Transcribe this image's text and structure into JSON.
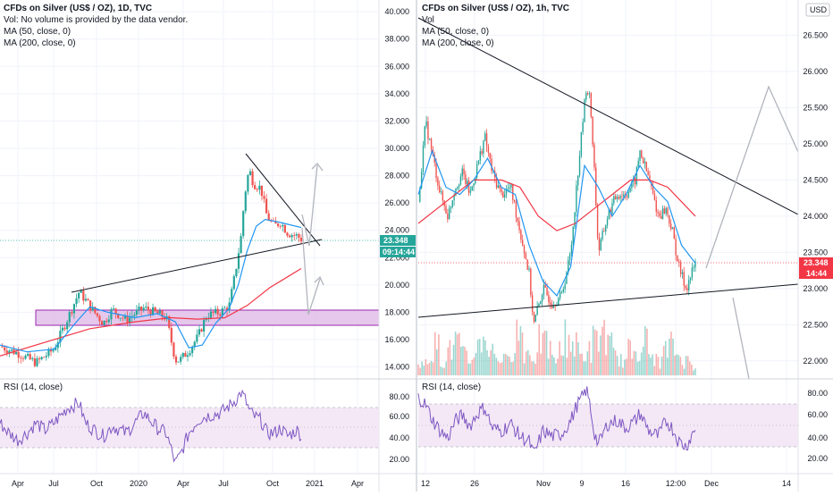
{
  "left_panel": {
    "header": {
      "title": "CFDs on Silver (US$ / OZ), 1D, TVC",
      "vol": "Vol: No volume is provided by the data vendor.",
      "ma50": "MA (50, close, 0)",
      "ma200": "MA (200, close, 0)"
    },
    "rsi_label": "RSI (14, close)",
    "last_price_tag": "23.348",
    "countdown_tag": "09:14:44",
    "price_axis_labels": [
      "40.000",
      "38.000",
      "36.000",
      "34.000",
      "32.000",
      "30.000",
      "28.000",
      "26.000",
      "24.000",
      "22.000",
      "20.000",
      "18.000",
      "16.000",
      "14.000"
    ],
    "rsi_axis_labels": [
      "80.00",
      "60.00",
      "40.00",
      "20.00"
    ],
    "time_axis_labels": [
      "Apr",
      "Jul",
      "Oct",
      "2020",
      "Apr",
      "Jul",
      "Oct",
      "2021",
      "Apr"
    ]
  },
  "right_panel": {
    "header": {
      "title": "CFDs on Silver (US$ / OZ), 1h, TVC",
      "vol": "Vol",
      "ma50": "MA (50, close, 0)",
      "ma200": "MA (200, close, 0)"
    },
    "currency_badge": "USD",
    "rsi_label": "RSI (14, close)",
    "last_price_tag": "23.348",
    "countdown_tag": "14:44",
    "price_axis_labels": [
      "26.500",
      "26.000",
      "25.500",
      "25.000",
      "24.500",
      "24.000",
      "23.500",
      "23.000",
      "22.500",
      "22.000"
    ],
    "rsi_axis_labels": [
      "80.00",
      "60.00",
      "40.00",
      "20.00"
    ],
    "time_axis_labels": [
      "12",
      "26",
      "Nov",
      "9",
      "16",
      "12:00",
      "Dec",
      "14"
    ]
  },
  "colors": {
    "up": "#26a69a",
    "down": "#ef5350",
    "ma50": "#2196f3",
    "ma200": "#f23645",
    "rsi": "#7e57c2",
    "rsi_band": "#f3e5f5",
    "zone_fill": "#e1bee7",
    "zone_border": "#9c27b0",
    "trendline": "#131722",
    "projection": "#b2b5be",
    "last_price_green": "#26a69a",
    "last_price_red": "#f23645"
  },
  "chart_data": [
    {
      "type": "candlestick",
      "title": "CFDs on Silver (US$ / OZ), 1D, TVC",
      "series_names": [
        "MA (50, close, 0)",
        "MA (200, close, 0)",
        "RSI (14, close)"
      ],
      "ylim": [
        13.5,
        40.5
      ],
      "close_path": [
        [
          0,
          15.5
        ],
        [
          20,
          15.0
        ],
        [
          40,
          14.3
        ],
        [
          60,
          15.3
        ],
        [
          75,
          17.5
        ],
        [
          88,
          19.5
        ],
        [
          95,
          18.9
        ],
        [
          105,
          18.0
        ],
        [
          115,
          17.2
        ],
        [
          125,
          18.2
        ],
        [
          140,
          17.4
        ],
        [
          150,
          17.9
        ],
        [
          160,
          18.3
        ],
        [
          175,
          17.9
        ],
        [
          185,
          17.6
        ],
        [
          195,
          14.5
        ],
        [
          200,
          14.5
        ],
        [
          210,
          15.2
        ],
        [
          220,
          16.2
        ],
        [
          230,
          17.8
        ],
        [
          245,
          18.0
        ],
        [
          255,
          18.5
        ],
        [
          262,
          21.0
        ],
        [
          268,
          23.5
        ],
        [
          272,
          26.5
        ],
        [
          277,
          28.5
        ],
        [
          282,
          27.4
        ],
        [
          290,
          27.1
        ],
        [
          297,
          25.0
        ],
        [
          305,
          24.3
        ],
        [
          312,
          24.6
        ],
        [
          320,
          23.8
        ],
        [
          330,
          23.6
        ],
        [
          335,
          23.35
        ]
      ],
      "ma50_path": [
        [
          0,
          15.6
        ],
        [
          30,
          15.1
        ],
        [
          60,
          15.3
        ],
        [
          85,
          17.3
        ],
        [
          100,
          18.4
        ],
        [
          120,
          18.0
        ],
        [
          150,
          17.6
        ],
        [
          175,
          17.9
        ],
        [
          195,
          17.3
        ],
        [
          210,
          15.4
        ],
        [
          225,
          15.6
        ],
        [
          240,
          17.2
        ],
        [
          255,
          18.3
        ],
        [
          265,
          20.0
        ],
        [
          275,
          22.5
        ],
        [
          285,
          24.3
        ],
        [
          295,
          24.8
        ],
        [
          310,
          24.6
        ],
        [
          335,
          24.2
        ]
      ],
      "ma200_path": [
        [
          0,
          14.8
        ],
        [
          100,
          16.8
        ],
        [
          150,
          17.3
        ],
        [
          190,
          17.6
        ],
        [
          220,
          17.5
        ],
        [
          250,
          17.6
        ],
        [
          275,
          18.5
        ],
        [
          300,
          19.8
        ],
        [
          320,
          20.6
        ],
        [
          335,
          21.2
        ]
      ],
      "rsi_path": [
        [
          0,
          55
        ],
        [
          10,
          45
        ],
        [
          20,
          38
        ],
        [
          30,
          45
        ],
        [
          40,
          55
        ],
        [
          50,
          48
        ],
        [
          60,
          55
        ],
        [
          75,
          70
        ],
        [
          88,
          75
        ],
        [
          95,
          55
        ],
        [
          105,
          48
        ],
        [
          115,
          42
        ],
        [
          125,
          52
        ],
        [
          140,
          45
        ],
        [
          150,
          55
        ],
        [
          160,
          65
        ],
        [
          175,
          50
        ],
        [
          185,
          45
        ],
        [
          195,
          15
        ],
        [
          200,
          22
        ],
        [
          210,
          45
        ],
        [
          220,
          58
        ],
        [
          230,
          62
        ],
        [
          245,
          65
        ],
        [
          255,
          72
        ],
        [
          262,
          78
        ],
        [
          268,
          85
        ],
        [
          272,
          80
        ],
        [
          277,
          68
        ],
        [
          282,
          62
        ],
        [
          290,
          58
        ],
        [
          297,
          45
        ],
        [
          305,
          45
        ],
        [
          312,
          50
        ],
        [
          320,
          42
        ],
        [
          330,
          48
        ],
        [
          335,
          43
        ]
      ],
      "rsi_range": [
        10,
        90
      ],
      "last_price": 23.348,
      "support_zone": [
        17.6,
        18.4
      ],
      "x_ticks": [
        "Apr",
        "Jul",
        "Oct",
        "2020",
        "Apr",
        "Jul",
        "Oct",
        "2021",
        "Apr"
      ]
    },
    {
      "type": "candlestick",
      "title": "CFDs on Silver (US$ / OZ), 1h, TVC",
      "series_names": [
        "Vol",
        "MA (50, close, 0)",
        "MA (200, close, 0)",
        "RSI (14, close)"
      ],
      "ylim": [
        21.8,
        26.95
      ],
      "close_path": [
        [
          0,
          24.2
        ],
        [
          8,
          25.3
        ],
        [
          16,
          24.8
        ],
        [
          24,
          24.3
        ],
        [
          32,
          24.0
        ],
        [
          40,
          24.4
        ],
        [
          48,
          24.6
        ],
        [
          56,
          24.3
        ],
        [
          64,
          24.7
        ],
        [
          72,
          25.1
        ],
        [
          80,
          24.6
        ],
        [
          90,
          24.3
        ],
        [
          100,
          24.4
        ],
        [
          110,
          23.8
        ],
        [
          120,
          23.2
        ],
        [
          125,
          22.5
        ],
        [
          135,
          23.0
        ],
        [
          145,
          22.8
        ],
        [
          155,
          22.9
        ],
        [
          165,
          23.5
        ],
        [
          172,
          24.5
        ],
        [
          178,
          25.3
        ],
        [
          182,
          25.8
        ],
        [
          186,
          25.6
        ],
        [
          190,
          24.8
        ],
        [
          195,
          23.5
        ],
        [
          205,
          24.0
        ],
        [
          215,
          24.3
        ],
        [
          225,
          24.3
        ],
        [
          235,
          24.5
        ],
        [
          240,
          24.9
        ],
        [
          250,
          24.5
        ],
        [
          260,
          24.0
        ],
        [
          268,
          24.1
        ],
        [
          275,
          23.8
        ],
        [
          282,
          23.3
        ],
        [
          290,
          23.0
        ],
        [
          300,
          23.35
        ]
      ],
      "ma50_path": [
        [
          0,
          24.3
        ],
        [
          15,
          24.9
        ],
        [
          30,
          24.4
        ],
        [
          45,
          24.3
        ],
        [
          60,
          24.5
        ],
        [
          75,
          24.8
        ],
        [
          90,
          24.4
        ],
        [
          105,
          24.3
        ],
        [
          120,
          23.6
        ],
        [
          135,
          23.1
        ],
        [
          150,
          22.9
        ],
        [
          165,
          23.3
        ],
        [
          180,
          24.7
        ],
        [
          195,
          24.4
        ],
        [
          210,
          24.0
        ],
        [
          225,
          24.3
        ],
        [
          240,
          24.7
        ],
        [
          255,
          24.4
        ],
        [
          270,
          24.2
        ],
        [
          285,
          23.6
        ],
        [
          300,
          23.35
        ]
      ],
      "ma200_path": [
        [
          0,
          23.9
        ],
        [
          30,
          24.2
        ],
        [
          60,
          24.5
        ],
        [
          90,
          24.5
        ],
        [
          110,
          24.4
        ],
        [
          130,
          24.0
        ],
        [
          150,
          23.8
        ],
        [
          170,
          23.9
        ],
        [
          190,
          24.1
        ],
        [
          210,
          24.3
        ],
        [
          230,
          24.5
        ],
        [
          250,
          24.5
        ],
        [
          270,
          24.4
        ],
        [
          300,
          24.0
        ]
      ],
      "volume_profile": [
        2,
        4,
        6,
        3,
        5,
        7,
        4,
        3,
        6,
        8,
        5,
        4,
        3,
        6,
        9,
        5,
        4,
        7,
        6,
        3,
        5,
        8,
        6,
        4,
        5,
        7,
        9,
        6,
        4,
        3,
        5,
        6,
        7,
        4,
        3,
        5,
        6,
        4,
        3,
        2
      ],
      "rsi_path": [
        [
          0,
          78
        ],
        [
          8,
          70
        ],
        [
          16,
          55
        ],
        [
          24,
          45
        ],
        [
          32,
          38
        ],
        [
          40,
          55
        ],
        [
          48,
          60
        ],
        [
          56,
          50
        ],
        [
          64,
          62
        ],
        [
          72,
          68
        ],
        [
          80,
          48
        ],
        [
          90,
          45
        ],
        [
          100,
          52
        ],
        [
          110,
          40
        ],
        [
          120,
          35
        ],
        [
          125,
          22
        ],
        [
          135,
          45
        ],
        [
          145,
          40
        ],
        [
          155,
          42
        ],
        [
          165,
          55
        ],
        [
          172,
          70
        ],
        [
          178,
          78
        ],
        [
          182,
          85
        ],
        [
          186,
          70
        ],
        [
          190,
          45
        ],
        [
          195,
          32
        ],
        [
          205,
          52
        ],
        [
          215,
          55
        ],
        [
          225,
          48
        ],
        [
          235,
          55
        ],
        [
          240,
          62
        ],
        [
          250,
          45
        ],
        [
          260,
          40
        ],
        [
          268,
          55
        ],
        [
          275,
          48
        ],
        [
          282,
          35
        ],
        [
          290,
          30
        ],
        [
          300,
          48
        ]
      ],
      "rsi_range": [
        10,
        90
      ],
      "last_price": 23.348,
      "x_ticks": [
        "12",
        "26",
        "Nov",
        "9",
        "16",
        "12:00",
        "Dec",
        "14"
      ]
    }
  ]
}
